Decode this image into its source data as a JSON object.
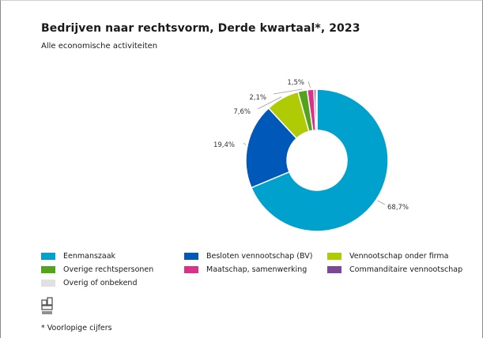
{
  "title": "Bedrijven naar rechtsvorm, Derde kwartaal*, 2023",
  "subtitle": "Alle economische activiteiten",
  "footnote": "* Voorlopige cijfers",
  "logo_icon": "cbs-logo-icon",
  "chart_data": {
    "type": "pie",
    "title": "Bedrijven naar rechtsvorm, Derde kwartaal*, 2023",
    "subtitle": "Alle economische activiteiten",
    "unit": "%",
    "legend_position": "bottom",
    "slices": [
      {
        "name": "Eenmanszaak",
        "value": 68.7,
        "label": "68,7%",
        "color": "#00a1cd"
      },
      {
        "name": "Besloten vennootschap (BV)",
        "value": 19.4,
        "label": "19,4%",
        "color": "#0058b8"
      },
      {
        "name": "Vennootschap onder firma",
        "value": 7.6,
        "label": "7,6%",
        "color": "#afcb05"
      },
      {
        "name": "Overige rechtspersonen",
        "value": 2.1,
        "label": "2,1%",
        "color": "#53a31d"
      },
      {
        "name": "Maatschap, samenwerking",
        "value": 1.5,
        "label": "1,5%",
        "color": "#d9328a"
      },
      {
        "name": "Commanditaire vennootschap",
        "value": 0.5,
        "label": "",
        "color": "#7d4791"
      },
      {
        "name": "Overig of onbekend",
        "value": 0.2,
        "label": "",
        "color": "#e1e1e1"
      }
    ]
  }
}
